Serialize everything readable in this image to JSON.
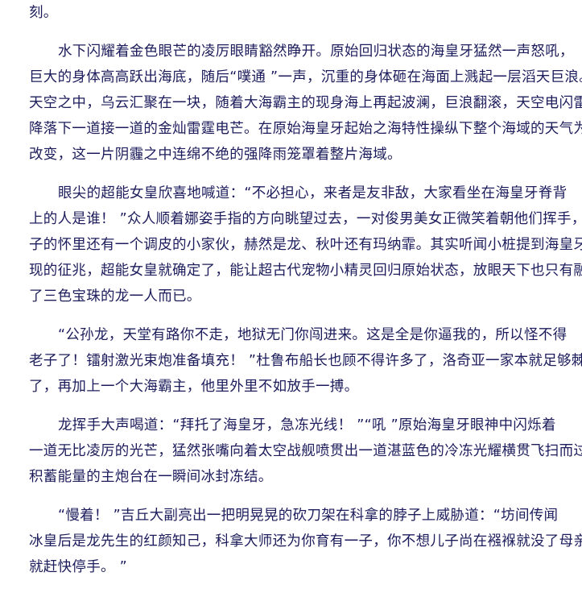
{
  "document": {
    "paragraphs": [
      {
        "indent": false,
        "lines": [
          "刻。"
        ]
      },
      {
        "indent": true,
        "lines": [
          "水下闪耀着金色眼芒的凌厉眼睛豁然睁开。原始回归状态的海皇牙猛然一声怒吼，",
          "巨大的身体高高跃出海底，随后“噗通 ”一声，沉重的身体砸在海面上溅起一层滔天巨浪。",
          "天空之中，乌云汇聚在一块，随着大海霸主的现身海上再起波澜，巨浪翻滚，天空电闪雷鸣",
          "降落下一道接一道的金灿雷霆电芒。在原始海皇牙起始之海特性操纵下整个海域的天气为之",
          "改变，这一片阴霾之中连绵不绝的强降雨笼罩着整片海域。"
        ]
      },
      {
        "indent": true,
        "lines": [
          "眼尖的超能女皇欣喜地喊道：“不必担心，来者是友非敌，大家看坐在海皇牙脊背",
          "上的人是谁！ ”众人顺着娜姿手指的方向眺望过去，一对俊男美女正微笑着朝他们挥手，女",
          "子的怀里还有一个调皮的小家伙，赫然是龙、秋叶还有玛纳霏。其实听闻小桩提到海皇牙出",
          "现的征兆，超能女皇就确定了，能让超古代宠物小精灵回归原始状态，放眼天下也只有融合",
          "了三色宝珠的龙一人而已。"
        ]
      },
      {
        "indent": true,
        "lines": [
          "“公孙龙，天堂有路你不走，地狱无门你闯进来。这是全是你逼我的，所以怪不得",
          "老子了！镭射激光束炮准备填充！ ”杜鲁布船长也顾不得许多了，洛奇亚一家本就足够棘手",
          "了，再加上一个大海霸主，他里外里不如放手一搏。"
        ]
      },
      {
        "indent": true,
        "lines": [
          "龙挥手大声喝道：“拜托了海皇牙，急冻光线！ ”“吼 ”原始海皇牙眼神中闪烁着",
          "一道无比凌厉的光芒，猛然张嘴向着太空战舰喷贯出一道湛蓝色的冷冻光耀横贯飞扫而过，",
          "积蓄能量的主炮台在一瞬间冰封冻结。"
        ]
      },
      {
        "indent": true,
        "lines": [
          "“慢着！ ”吉丘大副亮出一把明晃晃的砍刀架在科拿的脖子上威胁道：“坊间传闻",
          "冰皇后是龙先生的红颜知己，科拿大师还为你育有一子，你不想儿子尚在襁褓就没了母亲，",
          "就赶快停手。 ”"
        ]
      }
    ]
  }
}
